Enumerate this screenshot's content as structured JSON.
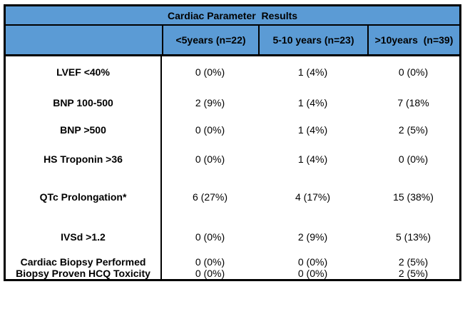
{
  "title": "Cardiac Parameter  Results",
  "columns": [
    "<5years (n=22)",
    "5-10 years (n=23)",
    ">10years  (n=39)"
  ],
  "rows": [
    {
      "label": "LVEF <40%",
      "values": [
        "0 (0%)",
        "1 (4%)",
        "0 (0%)"
      ]
    },
    {
      "label": "BNP 100-500",
      "values": [
        "2 (9%)",
        "1 (4%)",
        "7 (18%"
      ]
    },
    {
      "label": "BNP >500",
      "values": [
        "0 (0%)",
        "1 (4%)",
        "2 (5%)"
      ]
    },
    {
      "label": "HS Troponin >36",
      "values": [
        "0 (0%)",
        "1 (4%)",
        "0 (0%)"
      ]
    },
    {
      "label": "QTc Prolongation*",
      "values": [
        "6 (27%)",
        "4 (17%)",
        "15 (38%)"
      ]
    },
    {
      "label": "IVSd >1.2",
      "values": [
        "0 (0%)",
        "2 (9%)",
        "5 (13%)"
      ]
    },
    {
      "label": "Cardiac Biopsy Performed",
      "values": [
        "0 (0%)",
        "0 (0%)",
        "2 (5%)"
      ]
    },
    {
      "label": "Biopsy Proven HCQ Toxicity",
      "values": [
        "0 (0%)",
        "0 (0%)",
        "2 (5%)"
      ]
    }
  ],
  "colors": {
    "header_bg": "#5B9BD5",
    "border": "#000000",
    "text": "#000000"
  },
  "chart_data": {
    "type": "table",
    "title": "Cardiac Parameter  Results",
    "categories": [
      "<5years (n=22)",
      "5-10 years (n=23)",
      ">10years  (n=39)"
    ],
    "series": [
      {
        "name": "LVEF <40%",
        "values": [
          "0 (0%)",
          "1 (4%)",
          "0 (0%)"
        ]
      },
      {
        "name": "BNP 100-500",
        "values": [
          "2 (9%)",
          "1 (4%)",
          "7 (18%"
        ]
      },
      {
        "name": "BNP >500",
        "values": [
          "0 (0%)",
          "1 (4%)",
          "2 (5%)"
        ]
      },
      {
        "name": "HS Troponin >36",
        "values": [
          "0 (0%)",
          "1 (4%)",
          "0 (0%)"
        ]
      },
      {
        "name": "QTc Prolongation*",
        "values": [
          "6 (27%)",
          "4 (17%)",
          "15 (38%)"
        ]
      },
      {
        "name": "IVSd >1.2",
        "values": [
          "0 (0%)",
          "2 (9%)",
          "5 (13%)"
        ]
      },
      {
        "name": "Cardiac Biopsy Performed",
        "values": [
          "0 (0%)",
          "0 (0%)",
          "2 (5%)"
        ]
      },
      {
        "name": "Biopsy Proven HCQ Toxicity",
        "values": [
          "0 (0%)",
          "0 (0%)",
          "2 (5%)"
        ]
      }
    ]
  }
}
